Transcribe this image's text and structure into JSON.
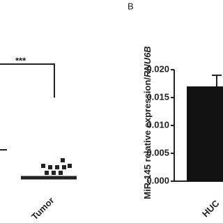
{
  "panel_a": {
    "annotation": "***",
    "category": "Tumor"
  },
  "chart_data": {
    "type": "bar",
    "panel_label": "B",
    "ylabel": [
      "MiR-145 relative expression/",
      "RNU6B"
    ],
    "categories": [
      "HUC"
    ],
    "values": [
      0.017
    ],
    "errors": [
      0.002
    ],
    "color": "#111111",
    "ylim": [
      0,
      0.02
    ],
    "yticks": [
      {
        "value": 0,
        "label": "0.000"
      },
      {
        "value": 0.005,
        "label": "0.005"
      },
      {
        "value": 0.01,
        "label": "0.010"
      },
      {
        "value": 0.015,
        "label": "0.015"
      },
      {
        "value": 0.02,
        "label": "0.020"
      }
    ]
  }
}
